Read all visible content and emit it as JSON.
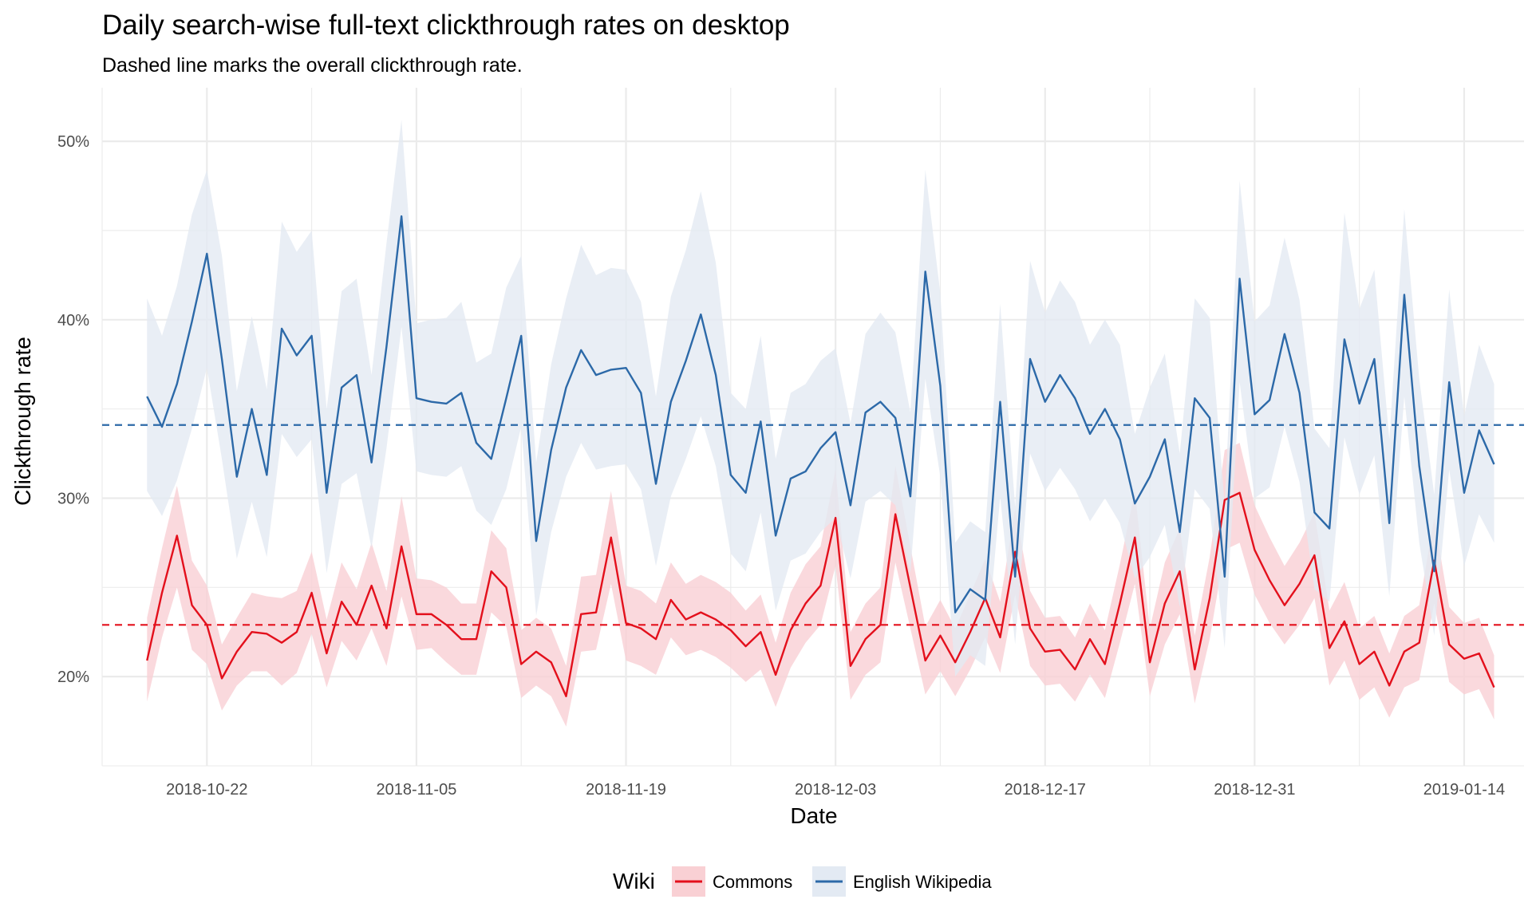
{
  "chart_data": {
    "type": "line",
    "title": "Daily search-wise full-text clickthrough rates on desktop",
    "subtitle": "Dashed line marks the overall clickthrough rate.",
    "xlabel": "Date",
    "ylabel": "Clickthrough rate",
    "x_ticks": [
      "2018-10-22",
      "2018-11-05",
      "2018-11-19",
      "2018-12-03",
      "2018-12-17",
      "2018-12-31",
      "2019-01-14"
    ],
    "y_ticks": [
      "20%",
      "30%",
      "40%",
      "50%"
    ],
    "x_range": [
      "2018-10-15",
      "2019-01-18"
    ],
    "y_range": [
      0.15,
      0.53
    ],
    "grid": true,
    "legend": {
      "title": "Wiki",
      "position": "bottom"
    },
    "series": [
      {
        "name": "Commons",
        "color": "#E3101C",
        "band_color": "#F9D0D4",
        "overall_rate": 0.229,
        "start_date": "2018-10-18",
        "values": [
          0.209,
          0.247,
          0.279,
          0.24,
          0.229,
          0.199,
          0.214,
          0.225,
          0.224,
          0.219,
          0.225,
          0.247,
          0.213,
          0.242,
          0.229,
          0.251,
          0.227,
          0.273,
          0.235,
          0.235,
          0.229,
          0.221,
          0.221,
          0.259,
          0.25,
          0.207,
          0.214,
          0.208,
          0.189,
          0.235,
          0.236,
          0.278,
          0.23,
          0.227,
          0.221,
          0.243,
          0.232,
          0.236,
          0.232,
          0.226,
          0.217,
          0.225,
          0.201,
          0.226,
          0.241,
          0.251,
          0.289,
          0.206,
          0.221,
          0.229,
          0.291,
          0.25,
          0.209,
          0.223,
          0.208,
          0.225,
          0.244,
          0.222,
          0.27,
          0.227,
          0.214,
          0.215,
          0.204,
          0.221,
          0.207,
          0.241,
          0.278,
          0.208,
          0.241,
          0.259,
          0.204,
          0.244,
          0.299,
          0.303,
          0.271,
          0.254,
          0.24,
          0.252,
          0.268,
          0.216,
          0.231,
          0.207,
          0.214,
          0.195,
          0.214,
          0.219,
          0.265,
          0.218,
          0.21,
          0.213,
          0.194
        ],
        "lower": [
          0.186,
          0.222,
          0.25,
          0.215,
          0.207,
          0.181,
          0.195,
          0.203,
          0.203,
          0.195,
          0.202,
          0.224,
          0.194,
          0.22,
          0.209,
          0.227,
          0.206,
          0.245,
          0.215,
          0.216,
          0.208,
          0.201,
          0.201,
          0.236,
          0.228,
          0.188,
          0.195,
          0.189,
          0.172,
          0.214,
          0.215,
          0.252,
          0.209,
          0.206,
          0.201,
          0.222,
          0.212,
          0.215,
          0.211,
          0.205,
          0.197,
          0.204,
          0.183,
          0.205,
          0.219,
          0.229,
          0.262,
          0.187,
          0.201,
          0.208,
          0.264,
          0.227,
          0.19,
          0.203,
          0.189,
          0.204,
          0.222,
          0.202,
          0.246,
          0.206,
          0.195,
          0.196,
          0.186,
          0.201,
          0.188,
          0.219,
          0.252,
          0.189,
          0.218,
          0.235,
          0.185,
          0.221,
          0.271,
          0.275,
          0.246,
          0.23,
          0.218,
          0.229,
          0.244,
          0.195,
          0.209,
          0.187,
          0.194,
          0.177,
          0.194,
          0.198,
          0.241,
          0.197,
          0.19,
          0.193,
          0.176
        ],
        "upper": [
          0.233,
          0.272,
          0.307,
          0.265,
          0.251,
          0.218,
          0.233,
          0.247,
          0.245,
          0.244,
          0.248,
          0.27,
          0.232,
          0.264,
          0.249,
          0.275,
          0.248,
          0.301,
          0.255,
          0.254,
          0.25,
          0.241,
          0.241,
          0.282,
          0.272,
          0.226,
          0.233,
          0.227,
          0.206,
          0.256,
          0.257,
          0.304,
          0.251,
          0.248,
          0.241,
          0.264,
          0.252,
          0.257,
          0.253,
          0.247,
          0.237,
          0.246,
          0.219,
          0.247,
          0.263,
          0.273,
          0.316,
          0.225,
          0.241,
          0.25,
          0.318,
          0.273,
          0.228,
          0.243,
          0.227,
          0.246,
          0.266,
          0.242,
          0.294,
          0.248,
          0.233,
          0.234,
          0.222,
          0.241,
          0.226,
          0.263,
          0.304,
          0.227,
          0.264,
          0.283,
          0.223,
          0.267,
          0.327,
          0.331,
          0.296,
          0.278,
          0.262,
          0.275,
          0.292,
          0.237,
          0.253,
          0.227,
          0.234,
          0.213,
          0.234,
          0.24,
          0.289,
          0.239,
          0.23,
          0.233,
          0.212
        ]
      },
      {
        "name": "English Wikipedia",
        "color": "#2C69A8",
        "band_color": "#E3EAF3",
        "overall_rate": 0.341,
        "start_date": "2018-10-18",
        "values": [
          0.357,
          0.34,
          0.364,
          0.399,
          0.437,
          0.378,
          0.312,
          0.35,
          0.313,
          0.395,
          0.38,
          0.391,
          0.303,
          0.362,
          0.369,
          0.32,
          0.385,
          0.458,
          0.356,
          0.354,
          0.353,
          0.359,
          0.331,
          0.322,
          0.356,
          0.391,
          0.276,
          0.327,
          0.362,
          0.383,
          0.369,
          0.372,
          0.373,
          0.359,
          0.308,
          0.354,
          0.377,
          0.403,
          0.369,
          0.313,
          0.303,
          0.343,
          0.279,
          0.311,
          0.315,
          0.328,
          0.337,
          0.296,
          0.348,
          0.354,
          0.345,
          0.301,
          0.427,
          0.363,
          0.236,
          0.249,
          0.243,
          0.354,
          0.256,
          0.378,
          0.354,
          0.369,
          0.356,
          0.336,
          0.35,
          0.333,
          0.297,
          0.312,
          0.333,
          0.281,
          0.356,
          0.345,
          0.256,
          0.423,
          0.347,
          0.355,
          0.392,
          0.359,
          0.292,
          0.283,
          0.389,
          0.353,
          0.378,
          0.286,
          0.414,
          0.318,
          0.259,
          0.365,
          0.303,
          0.338,
          0.319
        ],
        "lower": [
          0.304,
          0.29,
          0.31,
          0.339,
          0.373,
          0.322,
          0.266,
          0.298,
          0.267,
          0.336,
          0.323,
          0.333,
          0.258,
          0.308,
          0.314,
          0.272,
          0.328,
          0.396,
          0.315,
          0.313,
          0.312,
          0.318,
          0.293,
          0.285,
          0.305,
          0.34,
          0.234,
          0.281,
          0.312,
          0.331,
          0.316,
          0.318,
          0.319,
          0.305,
          0.262,
          0.301,
          0.322,
          0.346,
          0.318,
          0.269,
          0.259,
          0.292,
          0.237,
          0.265,
          0.269,
          0.281,
          0.289,
          0.255,
          0.298,
          0.304,
          0.296,
          0.258,
          0.367,
          0.312,
          0.2,
          0.212,
          0.206,
          0.301,
          0.218,
          0.325,
          0.304,
          0.317,
          0.305,
          0.287,
          0.3,
          0.286,
          0.255,
          0.267,
          0.285,
          0.239,
          0.305,
          0.294,
          0.216,
          0.365,
          0.3,
          0.306,
          0.34,
          0.309,
          0.249,
          0.242,
          0.334,
          0.302,
          0.324,
          0.245,
          0.357,
          0.275,
          0.223,
          0.316,
          0.262,
          0.291,
          0.275
        ],
        "upper": [
          0.412,
          0.391,
          0.419,
          0.459,
          0.484,
          0.436,
          0.36,
          0.402,
          0.361,
          0.455,
          0.438,
          0.45,
          0.35,
          0.416,
          0.423,
          0.369,
          0.443,
          0.512,
          0.398,
          0.4,
          0.401,
          0.41,
          0.376,
          0.381,
          0.418,
          0.436,
          0.32,
          0.375,
          0.412,
          0.442,
          0.425,
          0.429,
          0.428,
          0.41,
          0.357,
          0.413,
          0.439,
          0.472,
          0.432,
          0.359,
          0.35,
          0.391,
          0.322,
          0.359,
          0.364,
          0.377,
          0.384,
          0.342,
          0.392,
          0.404,
          0.393,
          0.348,
          0.484,
          0.415,
          0.275,
          0.287,
          0.281,
          0.409,
          0.295,
          0.433,
          0.404,
          0.422,
          0.41,
          0.386,
          0.4,
          0.386,
          0.336,
          0.362,
          0.381,
          0.325,
          0.412,
          0.401,
          0.296,
          0.478,
          0.399,
          0.408,
          0.446,
          0.411,
          0.339,
          0.328,
          0.46,
          0.406,
          0.428,
          0.333,
          0.462,
          0.367,
          0.302,
          0.417,
          0.346,
          0.386,
          0.364
        ]
      }
    ]
  }
}
